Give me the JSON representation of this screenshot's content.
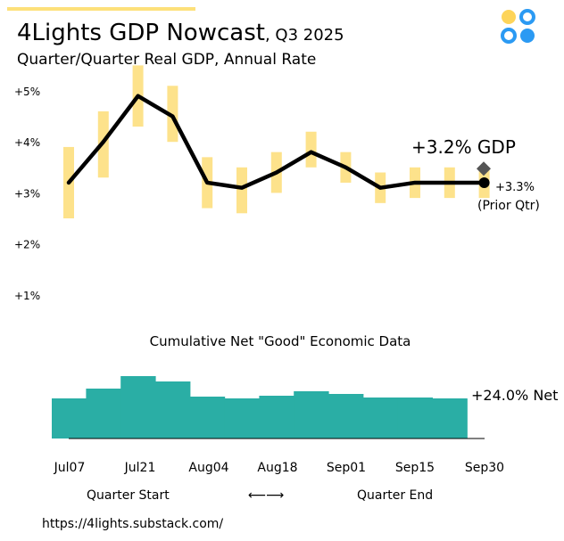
{
  "header": {
    "title": "4Lights GDP Nowcast",
    "title_suffix": ", Q3 2025",
    "subtitle": "Quarter/Quarter Real GDP, Annual Rate"
  },
  "logo": {
    "icon": "four-circles-logo",
    "colors": [
      "#fdd45a",
      "#2b9af3"
    ]
  },
  "colors": {
    "band": "#fde28b",
    "line": "#000000",
    "prior_marker": "#555555",
    "net_area": "#2aaea5",
    "accent_bar": "#fde07a"
  },
  "chart_data": [
    {
      "type": "line",
      "title": "4Lights GDP Nowcast, Q3 2025",
      "ylabel": "Quarter/Quarter Real GDP, Annual Rate",
      "y_ticks": [
        "+1%",
        "+2%",
        "+3%",
        "+4%",
        "+5%"
      ],
      "y_tick_values": [
        1,
        2,
        3,
        4,
        5
      ],
      "ylim": [
        0.9,
        5.55
      ],
      "x": [
        0,
        1,
        2,
        3,
        4,
        5,
        6,
        7,
        8,
        9,
        10,
        11,
        12
      ],
      "series": [
        {
          "name": "Nowcast",
          "values": [
            3.2,
            4.0,
            4.9,
            4.5,
            3.2,
            3.1,
            3.4,
            3.8,
            3.5,
            3.1,
            3.2,
            3.2,
            3.2
          ]
        }
      ],
      "uncertainty_band": {
        "low": [
          2.5,
          3.3,
          4.3,
          4.0,
          2.7,
          2.6,
          3.0,
          3.5,
          3.2,
          2.8,
          2.9,
          2.9,
          2.9
        ],
        "high": [
          3.9,
          4.6,
          5.5,
          5.1,
          3.7,
          3.5,
          3.8,
          4.2,
          3.8,
          3.4,
          3.5,
          3.5,
          3.5
        ]
      },
      "latest_label": "+3.2% GDP",
      "prior_quarter": {
        "value": 3.3,
        "label": "+3.3%",
        "sublabel": "(Prior Qtr)"
      }
    },
    {
      "type": "area",
      "title": "Cumulative Net \"Good\" Economic Data",
      "values": [
        45,
        56,
        70,
        64,
        47,
        45,
        48,
        53,
        50,
        46,
        46,
        45,
        44
      ],
      "ylim": [
        0,
        100
      ],
      "end_label": "+24.0% Net",
      "x_tick_labels": [
        "Jul07",
        "Jul21",
        "Aug04",
        "Aug18",
        "Sep01",
        "Sep15",
        "Sep30"
      ]
    }
  ],
  "footer": {
    "quarter_start": "Quarter Start",
    "arrow": "⟵⟶",
    "quarter_end": "Quarter End",
    "url": "https://4lights.substack.com/"
  }
}
